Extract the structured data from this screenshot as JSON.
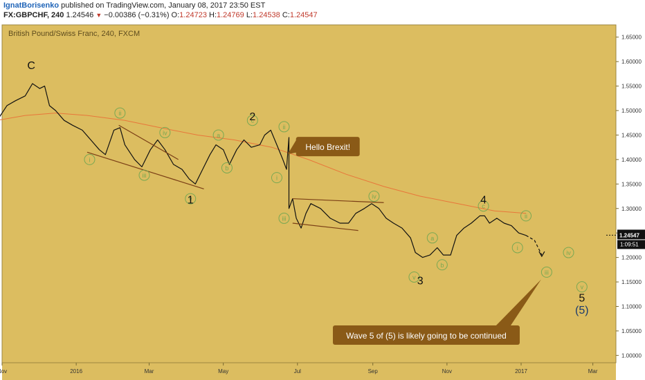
{
  "header": {
    "author": "IgnatBorisenko",
    "published_text": "published on TradingView.com, January 08, 2017 23:50 EST",
    "symbol": "FX:GBPCHF, 240",
    "last": "1.24546",
    "change": "−0.00386 (−0.31%)",
    "o_label": "O:",
    "o": "1.24723",
    "h_label": "H:",
    "h": "1.24769",
    "l_label": "L:",
    "l": "1.24538",
    "c_label": "C:",
    "c": "1.24547"
  },
  "colors": {
    "background": "#dcbd60",
    "price_line": "#111111",
    "ma_line": "#e8763a",
    "trendline": "#7a3e15",
    "circle": "#79a852",
    "wave_label": "#111111",
    "callout_bg": "#8a5a17",
    "callout_text": "#ffffff",
    "current_price_bg": "#111111",
    "blue_label": "#1a3a6e"
  },
  "chart_data": {
    "type": "line",
    "title": "British Pound/Swiss Franc, 240, FXCM",
    "y_range": [
      0.985,
      1.675
    ],
    "y_ticks": [
      "1.65000",
      "1.60000",
      "1.55000",
      "1.50000",
      "1.45000",
      "1.40000",
      "1.35000",
      "1.30000",
      "1.25000",
      "1.20000",
      "1.15000",
      "1.10000",
      "1.05000",
      "1.00000"
    ],
    "x_range": [
      "2015-11-01",
      "2017-03-20"
    ],
    "x_ticks": [
      {
        "label": "Nov",
        "date": "2015-11-01"
      },
      {
        "label": "2016",
        "date": "2016-01-01"
      },
      {
        "label": "Mar",
        "date": "2016-03-01"
      },
      {
        "label": "May",
        "date": "2016-05-01"
      },
      {
        "label": "Jul",
        "date": "2016-07-01"
      },
      {
        "label": "Sep",
        "date": "2016-09-01"
      },
      {
        "label": "Nov",
        "date": "2016-11-01"
      },
      {
        "label": "2017",
        "date": "2017-01-01"
      },
      {
        "label": "Mar",
        "date": "2017-03-01"
      }
    ],
    "current_price": "1.24547",
    "countdown": "1:09:51",
    "series": [
      {
        "values": [
          [
            "2015-10-28",
            1.48
          ],
          [
            "2015-11-05",
            1.51
          ],
          [
            "2015-11-12",
            1.52
          ],
          [
            "2015-11-20",
            1.53
          ],
          [
            "2015-11-26",
            1.555
          ],
          [
            "2015-12-02",
            1.545
          ],
          [
            "2015-12-06",
            1.55
          ],
          [
            "2015-12-10",
            1.51
          ],
          [
            "2015-12-15",
            1.5
          ],
          [
            "2015-12-22",
            1.48
          ],
          [
            "2015-12-29",
            1.47
          ],
          [
            "2016-01-06",
            1.46
          ],
          [
            "2016-01-13",
            1.44
          ],
          [
            "2016-01-20",
            1.42
          ],
          [
            "2016-01-25",
            1.41
          ],
          [
            "2016-02-01",
            1.46
          ],
          [
            "2016-02-06",
            1.465
          ],
          [
            "2016-02-10",
            1.43
          ],
          [
            "2016-02-18",
            1.4
          ],
          [
            "2016-02-24",
            1.385
          ],
          [
            "2016-03-02",
            1.42
          ],
          [
            "2016-03-08",
            1.44
          ],
          [
            "2016-03-14",
            1.42
          ],
          [
            "2016-03-21",
            1.39
          ],
          [
            "2016-03-28",
            1.38
          ],
          [
            "2016-04-03",
            1.36
          ],
          [
            "2016-04-08",
            1.35
          ],
          [
            "2016-04-14",
            1.38
          ],
          [
            "2016-04-20",
            1.41
          ],
          [
            "2016-04-25",
            1.43
          ],
          [
            "2016-05-01",
            1.42
          ],
          [
            "2016-05-06",
            1.39
          ],
          [
            "2016-05-12",
            1.42
          ],
          [
            "2016-05-18",
            1.44
          ],
          [
            "2016-05-24",
            1.425
          ],
          [
            "2016-05-31",
            1.43
          ],
          [
            "2016-06-04",
            1.45
          ],
          [
            "2016-06-09",
            1.46
          ],
          [
            "2016-06-14",
            1.43
          ],
          [
            "2016-06-19",
            1.4
          ],
          [
            "2016-06-22",
            1.38
          ],
          [
            "2016-06-24",
            1.445
          ],
          [
            "2016-06-24",
            1.3
          ],
          [
            "2016-06-27",
            1.32
          ],
          [
            "2016-06-30",
            1.28
          ],
          [
            "2016-07-04",
            1.26
          ],
          [
            "2016-07-08",
            1.29
          ],
          [
            "2016-07-12",
            1.31
          ],
          [
            "2016-07-20",
            1.3
          ],
          [
            "2016-07-28",
            1.28
          ],
          [
            "2016-08-05",
            1.27
          ],
          [
            "2016-08-12",
            1.27
          ],
          [
            "2016-08-18",
            1.29
          ],
          [
            "2016-08-25",
            1.3
          ],
          [
            "2016-08-31",
            1.31
          ],
          [
            "2016-09-06",
            1.3
          ],
          [
            "2016-09-12",
            1.28
          ],
          [
            "2016-09-18",
            1.27
          ],
          [
            "2016-09-25",
            1.26
          ],
          [
            "2016-10-02",
            1.24
          ],
          [
            "2016-10-06",
            1.21
          ],
          [
            "2016-10-12",
            1.2
          ],
          [
            "2016-10-18",
            1.205
          ],
          [
            "2016-10-24",
            1.22
          ],
          [
            "2016-10-29",
            1.205
          ],
          [
            "2016-11-04",
            1.205
          ],
          [
            "2016-11-09",
            1.245
          ],
          [
            "2016-11-15",
            1.26
          ],
          [
            "2016-11-21",
            1.27
          ],
          [
            "2016-11-28",
            1.285
          ],
          [
            "2016-12-02",
            1.285
          ],
          [
            "2016-12-06",
            1.27
          ],
          [
            "2016-12-12",
            1.28
          ],
          [
            "2016-12-18",
            1.27
          ],
          [
            "2016-12-24",
            1.265
          ],
          [
            "2016-12-30",
            1.25
          ],
          [
            "2017-01-05",
            1.245
          ]
        ]
      },
      {
        "values": [
          [
            "2015-10-28",
            1.48
          ],
          [
            "2015-11-20",
            1.49
          ],
          [
            "2015-12-15",
            1.495
          ],
          [
            "2016-01-10",
            1.49
          ],
          [
            "2016-02-10",
            1.48
          ],
          [
            "2016-03-10",
            1.465
          ],
          [
            "2016-04-10",
            1.45
          ],
          [
            "2016-05-10",
            1.44
          ],
          [
            "2016-06-10",
            1.425
          ],
          [
            "2016-07-10",
            1.4
          ],
          [
            "2016-08-10",
            1.37
          ],
          [
            "2016-09-10",
            1.345
          ],
          [
            "2016-10-10",
            1.325
          ],
          [
            "2016-11-10",
            1.31
          ],
          [
            "2016-12-10",
            1.295
          ],
          [
            "2017-01-05",
            1.29
          ]
        ]
      },
      {
        "values": [
          [
            "2017-01-05",
            1.245
          ],
          [
            "2017-01-12",
            1.235
          ],
          [
            "2017-01-18",
            1.205
          ]
        ]
      }
    ],
    "trendlines": [
      [
        [
          "2016-01-10",
          1.415
        ],
        [
          "2016-04-15",
          1.34
        ]
      ],
      [
        [
          "2016-02-05",
          1.47
        ],
        [
          "2016-03-25",
          1.4
        ]
      ],
      [
        [
          "2016-06-27",
          1.32
        ],
        [
          "2016-09-10",
          1.312
        ]
      ],
      [
        [
          "2016-06-27",
          1.27
        ],
        [
          "2016-08-20",
          1.255
        ]
      ]
    ],
    "annotations": {
      "wave_labels": [
        {
          "text": "C",
          "date": "2015-11-25",
          "y": 1.585
        },
        {
          "text": "2",
          "date": "2016-05-25",
          "y": 1.48
        },
        {
          "text": "1",
          "date": "2016-04-04",
          "y": 1.31
        },
        {
          "text": "4",
          "date": "2016-12-01",
          "y": 1.31
        },
        {
          "text": "3",
          "date": "2016-10-10",
          "y": 1.145
        },
        {
          "text": "5",
          "date": "2017-02-20",
          "y": 1.11
        },
        {
          "text": "(5)",
          "date": "2017-02-20",
          "y": 1.085
        }
      ],
      "circle_labels": [
        {
          "text": "ii",
          "date": "2016-02-06",
          "y": 1.495
        },
        {
          "text": "iv",
          "date": "2016-03-14",
          "y": 1.455
        },
        {
          "text": "i",
          "date": "2016-01-12",
          "y": 1.4
        },
        {
          "text": "iii",
          "date": "2016-02-26",
          "y": 1.368
        },
        {
          "text": "v",
          "date": "2016-04-04",
          "y": 1.32
        },
        {
          "text": "a",
          "date": "2016-04-27",
          "y": 1.45
        },
        {
          "text": "b",
          "date": "2016-05-04",
          "y": 1.383
        },
        {
          "text": "c",
          "date": "2016-05-25",
          "y": 1.48
        },
        {
          "text": "ii",
          "date": "2016-06-20",
          "y": 1.467
        },
        {
          "text": "i",
          "date": "2016-06-14",
          "y": 1.363
        },
        {
          "text": "iii",
          "date": "2016-06-20",
          "y": 1.28
        },
        {
          "text": "iv",
          "date": "2016-09-02",
          "y": 1.325
        },
        {
          "text": "a",
          "date": "2016-10-20",
          "y": 1.24
        },
        {
          "text": "b",
          "date": "2016-10-28",
          "y": 1.185
        },
        {
          "text": "v",
          "date": "2016-10-05",
          "y": 1.16
        },
        {
          "text": "c",
          "date": "2016-12-01",
          "y": 1.305
        },
        {
          "text": "ii",
          "date": "2017-01-05",
          "y": 1.285
        },
        {
          "text": "i",
          "date": "2016-12-29",
          "y": 1.22
        },
        {
          "text": "iv",
          "date": "2017-02-09",
          "y": 1.21
        },
        {
          "text": "iii",
          "date": "2017-01-22",
          "y": 1.17
        },
        {
          "text": "v",
          "date": "2017-02-20",
          "y": 1.14
        }
      ],
      "callouts": [
        {
          "text": "Hello Brexit!"
        },
        {
          "text": "Wave 5 of (5) is likely going to be continued"
        }
      ]
    }
  }
}
